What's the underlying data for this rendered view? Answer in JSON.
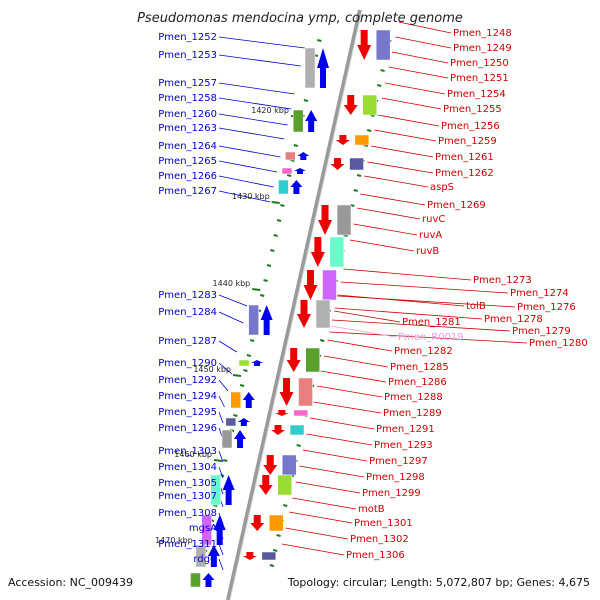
{
  "title": "Pseudomonas mendocina ymp, complete genome",
  "footer": {
    "accession": "Accession: NC_009439",
    "summary": "Topology: circular; Length: 5,072,807 bp; Genes: 4,675"
  },
  "colors": {
    "left_label": "#0000cc",
    "right_label": "#cc0000",
    "rna_label": "#e89ae8",
    "backbone": "#9a9a9a",
    "tick": "#1f7a1f",
    "forward_gene": "#0000ee",
    "reverse_gene": "#ee0000"
  },
  "scale_ticks": [
    "1420 kbp",
    "1430 kbp",
    "1440 kbp",
    "1450 kbp",
    "1460 kbp",
    "1470 kbp"
  ],
  "left_genes": [
    "Pmen_1252",
    "Pmen_1253",
    "Pmen_1257",
    "Pmen_1258",
    "Pmen_1260",
    "Pmen_1263",
    "Pmen_1264",
    "Pmen_1265",
    "Pmen_1266",
    "Pmen_1267",
    "Pmen_1283",
    "Pmen_1284",
    "Pmen_1287",
    "Pmen_1290",
    "Pmen_1292",
    "Pmen_1294",
    "Pmen_1295",
    "Pmen_1296",
    "Pmen_1303",
    "Pmen_1304",
    "Pmen_1305",
    "Pmen_1307",
    "Pmen_1308",
    "mgsA",
    "Pmen_1311",
    "rdgC"
  ],
  "right_genes": [
    "Pmen_1248",
    "Pmen_1249",
    "Pmen_1250",
    "Pmen_1251",
    "Pmen_1254",
    "Pmen_1255",
    "Pmen_1256",
    "Pmen_1259",
    "Pmen_1261",
    "Pmen_1262",
    "aspS",
    "Pmen_1269",
    "ruvC",
    "ruvA",
    "ruvB",
    "Pmen_1273",
    "Pmen_1274",
    "Pmen_1276",
    "tolB",
    "Pmen_1278",
    "Pmen_1279",
    "Pmen_1280",
    "Pmen_1281",
    "Pmen_R0019",
    "Pmen_1282",
    "Pmen_1285",
    "Pmen_1286",
    "Pmen_1288",
    "Pmen_1289",
    "Pmen_1291",
    "Pmen_1293",
    "Pmen_1297",
    "Pmen_1298",
    "Pmen_1299",
    "motB",
    "Pmen_1301",
    "Pmen_1302",
    "Pmen_1306"
  ]
}
